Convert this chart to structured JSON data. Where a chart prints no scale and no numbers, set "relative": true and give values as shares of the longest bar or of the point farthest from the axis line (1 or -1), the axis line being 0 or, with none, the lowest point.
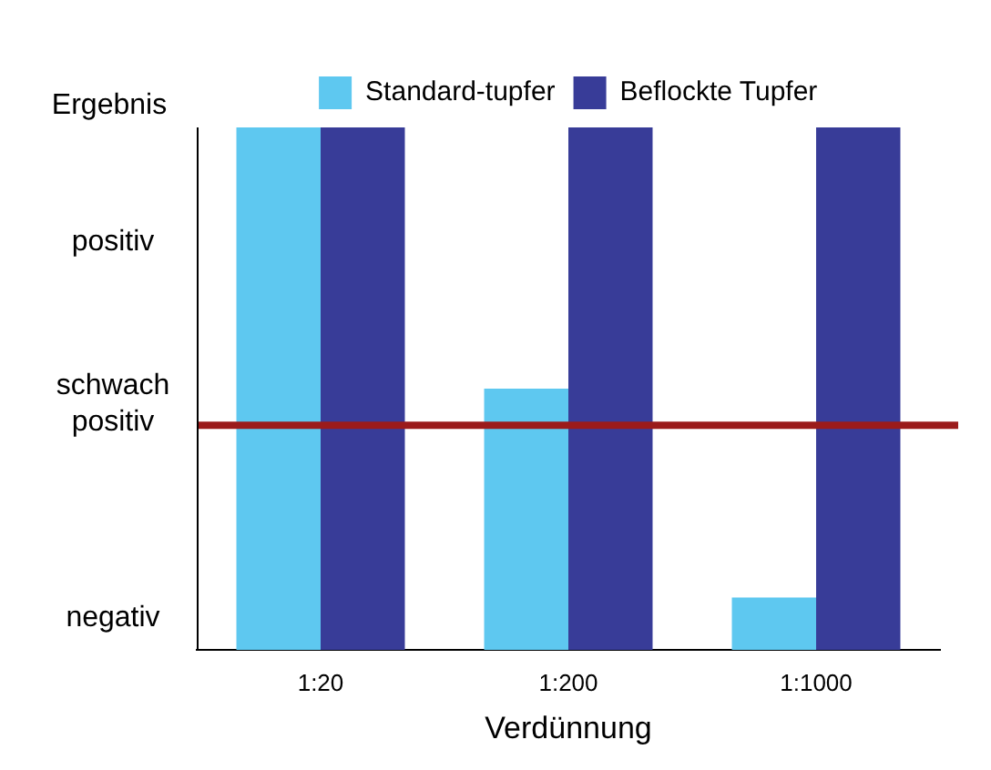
{
  "chart_data": {
    "type": "bar",
    "ylabel": "Ergebnis",
    "xlabel": "Verdünnung",
    "categories": [
      "1:20",
      "1:200",
      "1:1000"
    ],
    "series": [
      {
        "name": "Standard-tupfer",
        "color": "#5ec8f0",
        "values": [
          1,
          0.5,
          0.1
        ]
      },
      {
        "name": "Beflockte Tupfer",
        "color": "#383c98",
        "values": [
          1,
          1,
          1
        ]
      }
    ],
    "relative": true,
    "annotations": [
      "positiv",
      "schwach positiv",
      "negativ"
    ],
    "ref_lines": [
      {
        "axis": "y",
        "value": 0.43,
        "color": "#9b1b1b"
      }
    ],
    "legend": "top",
    "grid": false
  }
}
